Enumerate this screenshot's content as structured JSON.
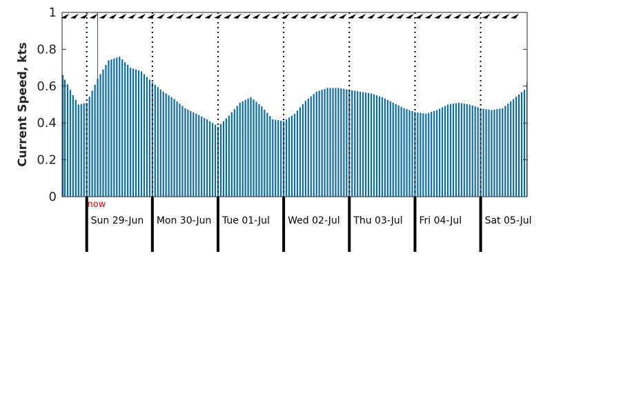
{
  "chart_data": {
    "type": "bar",
    "ylabel": "Current Speed, kts",
    "ylim": [
      0,
      1
    ],
    "yticks": [
      "0",
      "0.2",
      "0.4",
      "0.6",
      "0.8",
      "1"
    ],
    "bar_color": "#0a6bab",
    "x_unit": "hours",
    "x_start": "2025-06-28T15:00",
    "x_end": "2025-07-05T17:00",
    "now": {
      "label": "now",
      "x": "2025-06-29T04:00",
      "color": "#ff0000"
    },
    "days": [
      {
        "label": "Sun 29-Jun",
        "x": "2025-06-29T00:00"
      },
      {
        "label": "Mon 30-Jun",
        "x": "2025-06-30T00:00"
      },
      {
        "label": "Tue 01-Jul",
        "x": "2025-07-01T00:00"
      },
      {
        "label": "Wed 02-Jul",
        "x": "2025-07-02T00:00"
      },
      {
        "label": "Thu 03-Jul",
        "x": "2025-07-03T00:00"
      },
      {
        "label": "Fri 04-Jul",
        "x": "2025-07-04T00:00"
      },
      {
        "label": "Sat 05-Jul",
        "x": "2025-07-05T00:00"
      }
    ],
    "keypoints": [
      [
        "2025-06-28T15:00",
        0.66
      ],
      [
        "2025-06-28T17:00",
        0.61
      ],
      [
        "2025-06-28T19:00",
        0.55
      ],
      [
        "2025-06-28T21:00",
        0.5
      ],
      [
        "2025-06-29T00:00",
        0.51
      ],
      [
        "2025-06-29T04:00",
        0.64
      ],
      [
        "2025-06-29T08:00",
        0.74
      ],
      [
        "2025-06-29T12:00",
        0.76
      ],
      [
        "2025-06-29T16:00",
        0.7
      ],
      [
        "2025-06-29T20:00",
        0.68
      ],
      [
        "2025-06-30T00:00",
        0.62
      ],
      [
        "2025-06-30T04:00",
        0.57
      ],
      [
        "2025-06-30T08:00",
        0.53
      ],
      [
        "2025-06-30T12:00",
        0.48
      ],
      [
        "2025-06-30T16:00",
        0.45
      ],
      [
        "2025-06-30T20:00",
        0.42
      ],
      [
        "2025-07-01T00:00",
        0.38
      ],
      [
        "2025-07-01T04:00",
        0.44
      ],
      [
        "2025-07-01T08:00",
        0.51
      ],
      [
        "2025-07-01T12:00",
        0.54
      ],
      [
        "2025-07-01T16:00",
        0.49
      ],
      [
        "2025-07-01T20:00",
        0.42
      ],
      [
        "2025-07-02T00:00",
        0.41
      ],
      [
        "2025-07-02T04:00",
        0.45
      ],
      [
        "2025-07-02T08:00",
        0.52
      ],
      [
        "2025-07-02T12:00",
        0.57
      ],
      [
        "2025-07-02T16:00",
        0.59
      ],
      [
        "2025-07-02T20:00",
        0.59
      ],
      [
        "2025-07-03T00:00",
        0.58
      ],
      [
        "2025-07-03T04:00",
        0.57
      ],
      [
        "2025-07-03T08:00",
        0.56
      ],
      [
        "2025-07-03T12:00",
        0.54
      ],
      [
        "2025-07-03T16:00",
        0.51
      ],
      [
        "2025-07-03T20:00",
        0.48
      ],
      [
        "2025-07-04T00:00",
        0.46
      ],
      [
        "2025-07-04T04:00",
        0.45
      ],
      [
        "2025-07-04T08:00",
        0.47
      ],
      [
        "2025-07-04T12:00",
        0.5
      ],
      [
        "2025-07-04T16:00",
        0.51
      ],
      [
        "2025-07-04T20:00",
        0.5
      ],
      [
        "2025-07-05T00:00",
        0.48
      ],
      [
        "2025-07-05T04:00",
        0.47
      ],
      [
        "2025-07-05T08:00",
        0.48
      ],
      [
        "2025-07-05T12:00",
        0.53
      ],
      [
        "2025-07-05T16:00",
        0.58
      ],
      [
        "2025-07-05T17:00",
        0.62
      ]
    ],
    "grid": false,
    "direction_arrows": "top"
  }
}
